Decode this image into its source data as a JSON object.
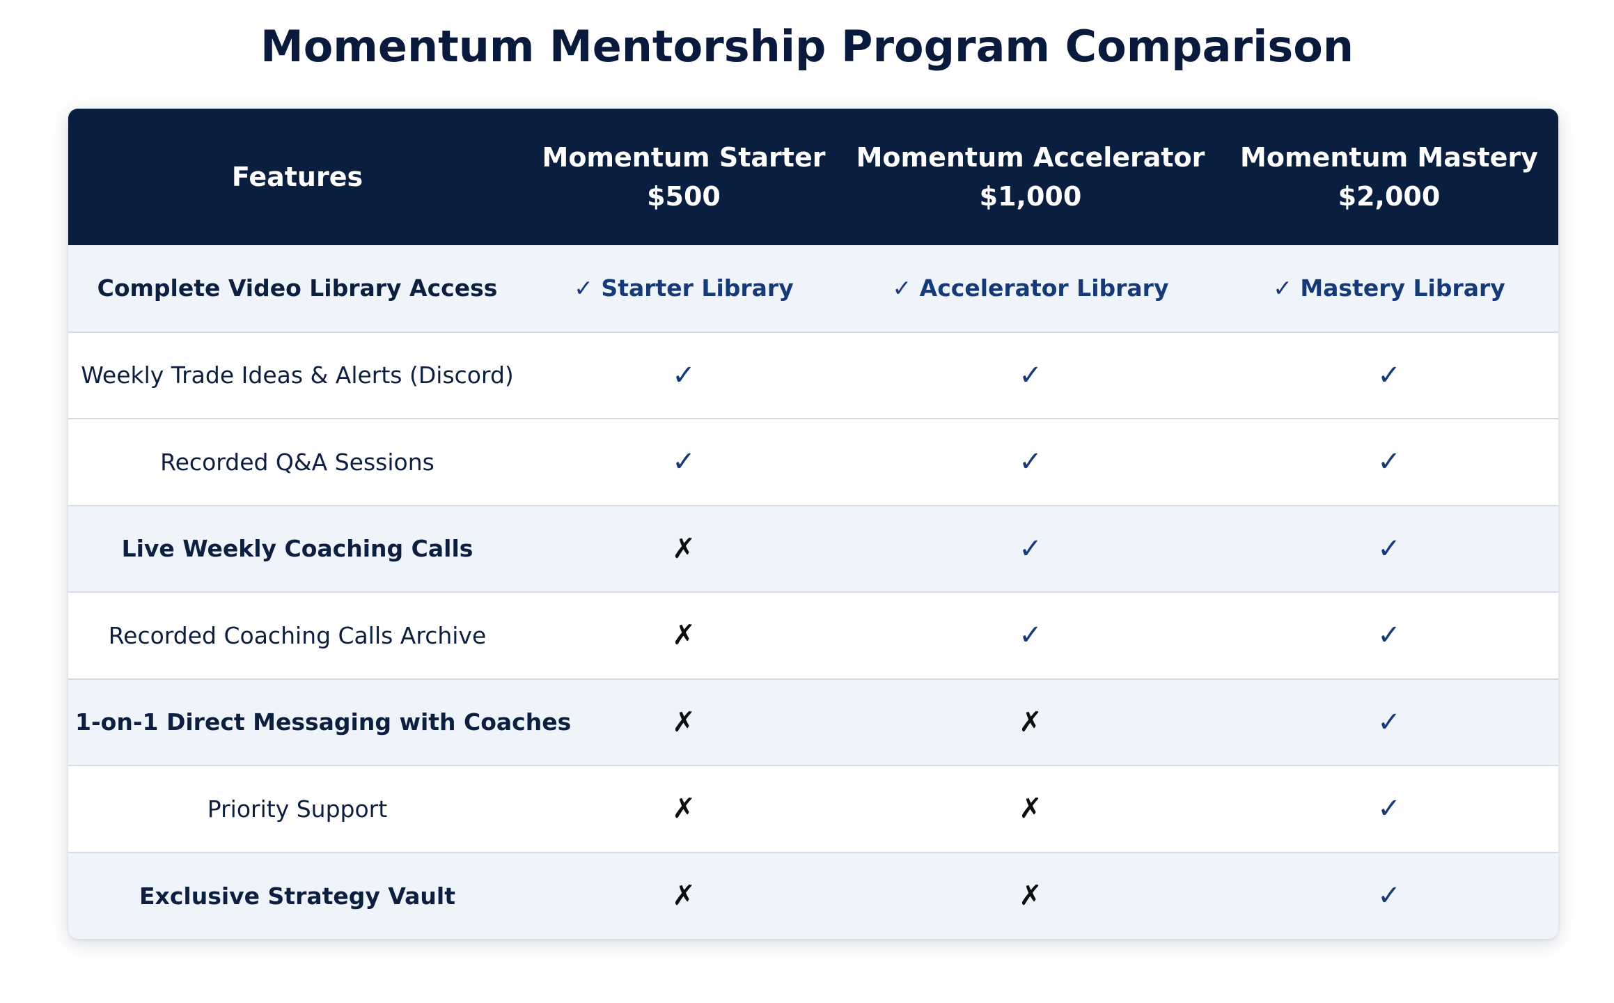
{
  "title": "Momentum Mentorship Program Comparison",
  "colors": {
    "header_bg": "#0a1f3f",
    "header_text": "#ffffff",
    "shaded_row": "#eff3fa",
    "check": "#163a78",
    "cross": "#0d0d0d",
    "divider": "#d6dce6"
  },
  "header": {
    "features_label": "Features",
    "plans": [
      {
        "name": "Momentum Starter",
        "price": "$500"
      },
      {
        "name": "Momentum Accelerator",
        "price": "$1,000"
      },
      {
        "name": "Momentum Mastery",
        "price": "$2,000"
      }
    ]
  },
  "rows": [
    {
      "feature": "Complete Video Library Access",
      "bold": true,
      "shaded": true,
      "values": [
        {
          "kind": "text",
          "text": "✓ Starter Library"
        },
        {
          "kind": "text",
          "text": "✓ Accelerator Library"
        },
        {
          "kind": "text",
          "text": "✓ Mastery Library"
        }
      ]
    },
    {
      "feature": "Weekly Trade Ideas & Alerts (Discord)",
      "bold": false,
      "shaded": false,
      "values": [
        {
          "kind": "check",
          "text": "✓"
        },
        {
          "kind": "check",
          "text": "✓"
        },
        {
          "kind": "check",
          "text": "✓"
        }
      ]
    },
    {
      "feature": "Recorded Q&A Sessions",
      "bold": false,
      "shaded": false,
      "values": [
        {
          "kind": "check",
          "text": "✓"
        },
        {
          "kind": "check",
          "text": "✓"
        },
        {
          "kind": "check",
          "text": "✓"
        }
      ]
    },
    {
      "feature": "Live Weekly Coaching Calls",
      "bold": true,
      "shaded": true,
      "values": [
        {
          "kind": "cross",
          "text": "✗"
        },
        {
          "kind": "check",
          "text": "✓"
        },
        {
          "kind": "check",
          "text": "✓"
        }
      ]
    },
    {
      "feature": "Recorded Coaching Calls Archive",
      "bold": false,
      "shaded": false,
      "values": [
        {
          "kind": "cross",
          "text": "✗"
        },
        {
          "kind": "check",
          "text": "✓"
        },
        {
          "kind": "check",
          "text": "✓"
        }
      ]
    },
    {
      "feature": "1-on-1 Direct Messaging with Coaches",
      "bold": true,
      "shaded": true,
      "values": [
        {
          "kind": "cross",
          "text": "✗"
        },
        {
          "kind": "cross",
          "text": "✗"
        },
        {
          "kind": "check",
          "text": "✓"
        }
      ]
    },
    {
      "feature": "Priority Support",
      "bold": false,
      "shaded": false,
      "values": [
        {
          "kind": "cross",
          "text": "✗"
        },
        {
          "kind": "cross",
          "text": "✗"
        },
        {
          "kind": "check",
          "text": "✓"
        }
      ]
    },
    {
      "feature": "Exclusive Strategy Vault",
      "bold": true,
      "shaded": true,
      "values": [
        {
          "kind": "cross",
          "text": "✗"
        },
        {
          "kind": "cross",
          "text": "✗"
        },
        {
          "kind": "check",
          "text": "✓"
        }
      ]
    }
  ]
}
